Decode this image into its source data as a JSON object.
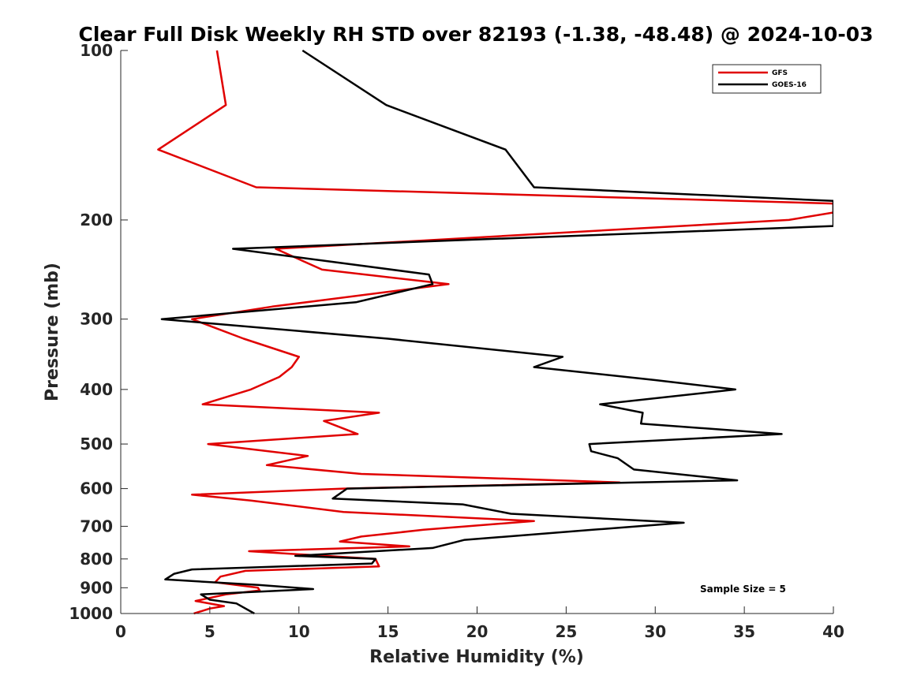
{
  "chart_data": {
    "type": "line",
    "title": "Clear Full Disk Weekly RH STD over 82193 (-1.38, -48.48) @ 2024-10-03",
    "xlabel": "Relative Humidity (%)",
    "ylabel": "Pressure (mb)",
    "xlim": [
      0,
      40
    ],
    "ylim": [
      1000,
      100
    ],
    "y_scale": "log",
    "x_ticks": [
      0,
      5,
      10,
      15,
      20,
      25,
      30,
      35,
      40
    ],
    "y_ticks": [
      100,
      200,
      300,
      400,
      500,
      600,
      700,
      800,
      900,
      1000
    ],
    "grid": false,
    "legend_position": "top-right",
    "annotation": "Sample Size = 5",
    "series": [
      {
        "name": "GFS",
        "color": "#e00000",
        "points": [
          [
            5.4,
            100
          ],
          [
            5.9,
            125
          ],
          [
            2.1,
            150
          ],
          [
            7.6,
            175
          ],
          [
            40,
            187
          ],
          [
            40,
            194
          ],
          [
            37.5,
            200
          ],
          [
            8.7,
            225
          ],
          [
            11.3,
            245
          ],
          [
            18.4,
            260
          ],
          [
            8.5,
            285
          ],
          [
            4.0,
            300
          ],
          [
            6.9,
            325
          ],
          [
            10.0,
            350
          ],
          [
            9.6,
            365
          ],
          [
            8.9,
            380
          ],
          [
            7.3,
            400
          ],
          [
            4.6,
            425
          ],
          [
            14.5,
            440
          ],
          [
            11.4,
            455
          ],
          [
            13.3,
            480
          ],
          [
            4.9,
            500
          ],
          [
            10.5,
            525
          ],
          [
            8.2,
            545
          ],
          [
            13.5,
            565
          ],
          [
            28.0,
            585
          ],
          [
            12.5,
            600
          ],
          [
            4.0,
            615
          ],
          [
            7.3,
            630
          ],
          [
            12.5,
            660
          ],
          [
            23.2,
            685
          ],
          [
            17.0,
            710
          ],
          [
            13.5,
            730
          ],
          [
            12.3,
            745
          ],
          [
            16.2,
            760
          ],
          [
            7.2,
            775
          ],
          [
            14.3,
            800
          ],
          [
            14.5,
            825
          ],
          [
            7.0,
            840
          ],
          [
            5.6,
            860
          ],
          [
            5.3,
            880
          ],
          [
            7.7,
            900
          ],
          [
            7.8,
            910
          ],
          [
            5.9,
            925
          ],
          [
            4.2,
            950
          ],
          [
            5.8,
            970
          ],
          [
            5.0,
            980
          ],
          [
            4.1,
            1000
          ]
        ]
      },
      {
        "name": "GOES-16",
        "color": "#000000",
        "points": [
          [
            10.2,
            100
          ],
          [
            14.9,
            125
          ],
          [
            21.6,
            150
          ],
          [
            23.2,
            175
          ],
          [
            40,
            185
          ],
          [
            40,
            205
          ],
          [
            6.3,
            225
          ],
          [
            17.3,
            250
          ],
          [
            17.5,
            260
          ],
          [
            13.2,
            280
          ],
          [
            2.3,
            300
          ],
          [
            15.0,
            325
          ],
          [
            24.8,
            350
          ],
          [
            23.2,
            365
          ],
          [
            30.0,
            385
          ],
          [
            34.5,
            400
          ],
          [
            26.9,
            425
          ],
          [
            29.3,
            440
          ],
          [
            29.2,
            460
          ],
          [
            37.1,
            480
          ],
          [
            26.3,
            500
          ],
          [
            26.4,
            515
          ],
          [
            27.9,
            530
          ],
          [
            28.8,
            555
          ],
          [
            34.6,
            580
          ],
          [
            12.7,
            600
          ],
          [
            11.9,
            625
          ],
          [
            19.2,
            640
          ],
          [
            21.9,
            665
          ],
          [
            31.6,
            690
          ],
          [
            26.5,
            710
          ],
          [
            19.3,
            740
          ],
          [
            17.5,
            765
          ],
          [
            9.8,
            790
          ],
          [
            14.3,
            800
          ],
          [
            14.1,
            815
          ],
          [
            4.0,
            835
          ],
          [
            3.0,
            850
          ],
          [
            2.5,
            870
          ],
          [
            7.8,
            890
          ],
          [
            10.8,
            905
          ],
          [
            4.5,
            925
          ],
          [
            5.0,
            945
          ],
          [
            6.5,
            960
          ],
          [
            7.5,
            1000
          ]
        ]
      }
    ]
  }
}
